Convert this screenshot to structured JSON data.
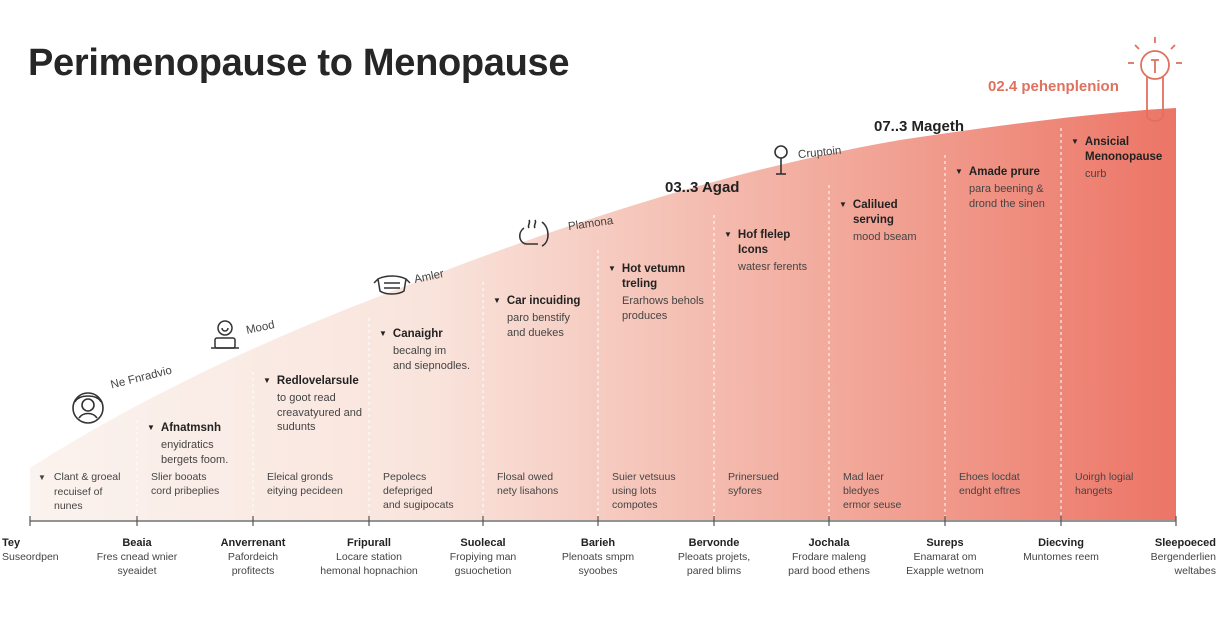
{
  "title": "Perimenopause to Menopause",
  "colors": {
    "fill_start": "#fbf3ef",
    "fill_end": "#ec7566",
    "accent": "#e0715f",
    "divider": "#ffffff",
    "axis": "#555555"
  },
  "curve_labels": [
    {
      "text": "Ne Fnradvio",
      "icon": "face-icon"
    },
    {
      "text": "Mood",
      "icon": "mood-person-icon"
    },
    {
      "text": "Amler",
      "icon": "mask-icon"
    },
    {
      "text": "Plamona",
      "icon": "steam-icon"
    },
    {
      "text": "Cruptoin",
      "icon": "person-icon"
    }
  ],
  "stage_labels": [
    "03..3 Agad",
    "07..3 Mageth",
    "02.4 pehenplenion"
  ],
  "top_icon": "lightbulb-thermometer-icon",
  "segments": [
    {
      "title": [],
      "desc": [],
      "bottom": [
        "Clant & groeal",
        "recuisef of",
        "nunes"
      ]
    },
    {
      "title": [
        "Afnatmsnh"
      ],
      "desc": [
        "enyidratics",
        "bergets foom."
      ],
      "bottom": [
        "Slier booats",
        "cord pribeplies"
      ]
    },
    {
      "title": [
        "Redlovelarsule"
      ],
      "desc": [
        "to goot read",
        "creavatyured and",
        "sudunts"
      ],
      "bottom": [
        "Eleical gronds",
        "eitying pecideen"
      ]
    },
    {
      "title": [
        "Canaighr"
      ],
      "desc": [
        "becalng im",
        "and siepnodles."
      ],
      "bottom": [
        "Pepolecs",
        "defepriged",
        "and sugipocats"
      ]
    },
    {
      "title": [
        "Car incuiding"
      ],
      "desc": [
        "paro benstify",
        "and duekes"
      ],
      "bottom": [
        "Flosal owed",
        "nety lisahons"
      ]
    },
    {
      "title": [
        "Hot vetumn",
        "treling"
      ],
      "desc": [
        "Erarhows behols",
        "produces"
      ],
      "bottom": [
        "Suier vetsuus",
        "using lots",
        "compotes"
      ]
    },
    {
      "title": [
        "Hof flelep",
        "Icons"
      ],
      "desc": [
        "watesr ferents"
      ],
      "bottom": [
        "Prinersued",
        "syfores"
      ]
    },
    {
      "title": [
        "Calilued",
        "serving"
      ],
      "desc": [
        "mood bseam"
      ],
      "bottom": [
        "Mad laer",
        "bledyes",
        "ermor seuse"
      ]
    },
    {
      "title": [
        "Amade prure"
      ],
      "desc": [
        "para beening &",
        "drond the sinen"
      ],
      "bottom": [
        "Ehoes locdat",
        "endght eftres"
      ]
    },
    {
      "title": [
        "Ansicial",
        "Menonopause"
      ],
      "desc": [
        "curb"
      ],
      "bottom": [
        "Uoirgh logial",
        "hangets"
      ]
    }
  ],
  "axis_labels": [
    {
      "name": "Tey",
      "sub": [
        "Suseordpen"
      ]
    },
    {
      "name": "Beaia",
      "sub": [
        "Fres cnead wnier",
        "syeaidet"
      ]
    },
    {
      "name": "Anverrenant",
      "sub": [
        "Pafordeich",
        "profitects"
      ]
    },
    {
      "name": "Fripurall",
      "sub": [
        "Locare station",
        "hemonal hopnachion"
      ]
    },
    {
      "name": "Suolecal",
      "sub": [
        "Fropiying man",
        "gsuochetion"
      ]
    },
    {
      "name": "Barieh",
      "sub": [
        "Plenoats smpm",
        "syoobes"
      ]
    },
    {
      "name": "Bervonde",
      "sub": [
        "Pleoats projets,",
        "pared blims"
      ]
    },
    {
      "name": "Jochala",
      "sub": [
        "Frodare maleng",
        "pard bood ethens"
      ]
    },
    {
      "name": "Sureps",
      "sub": [
        "Enamarat om",
        "Exapple wetnom"
      ]
    },
    {
      "name": "Diecving",
      "sub": [
        "Muntomes reem"
      ]
    },
    {
      "name": "Sleepoeced",
      "sub": [
        "Bergenderlien",
        "weltabes"
      ]
    }
  ]
}
